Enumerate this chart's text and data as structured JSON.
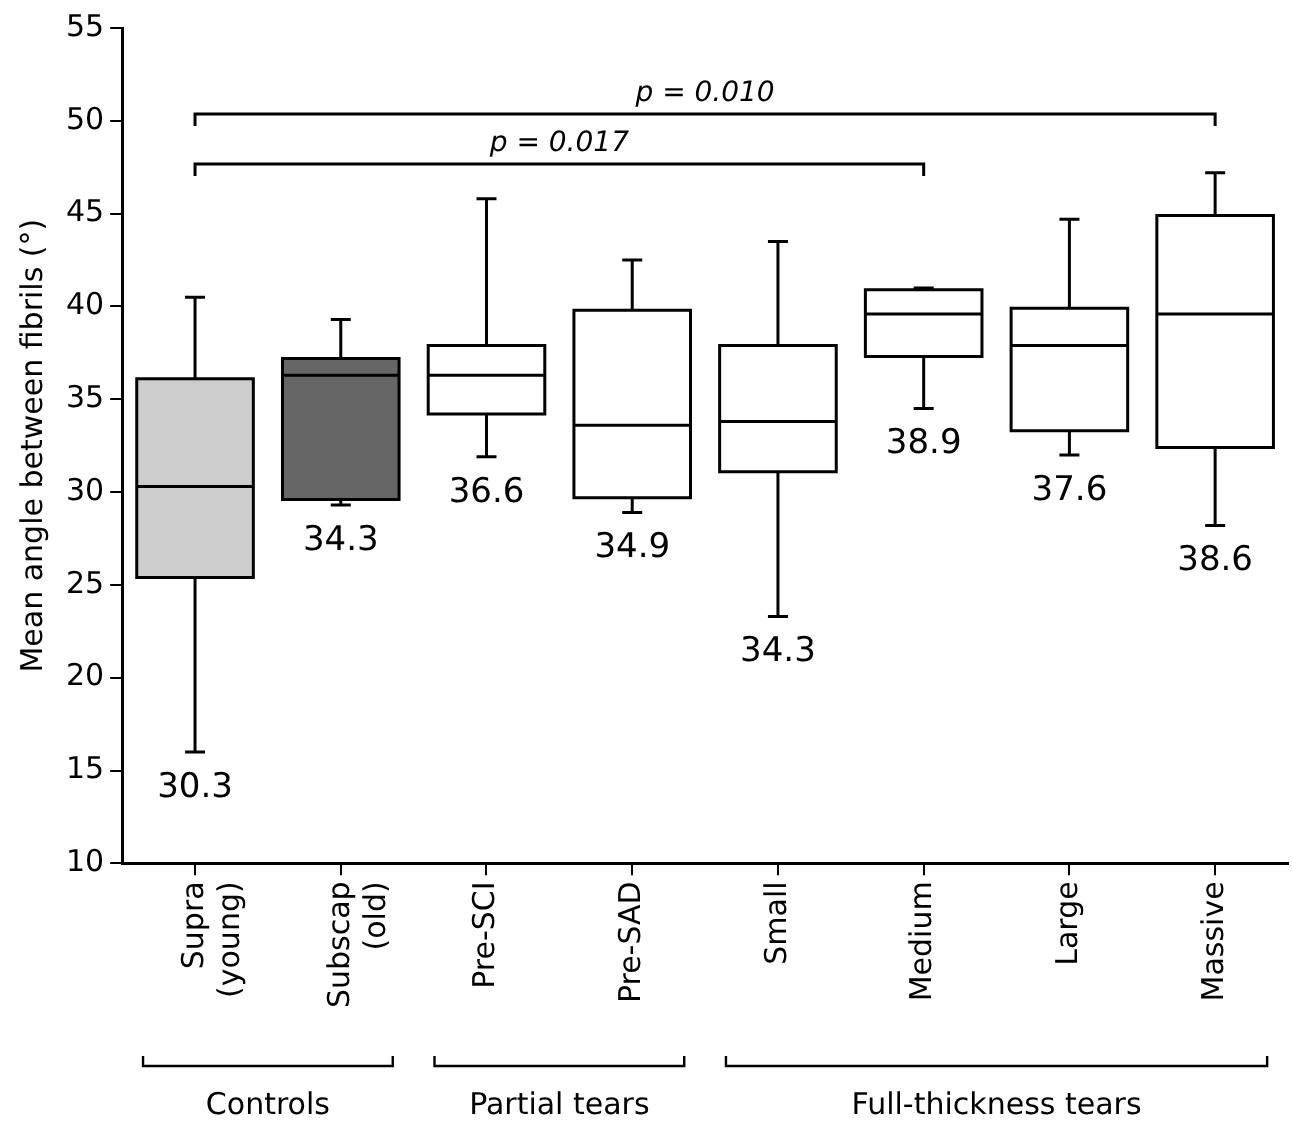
{
  "chart_data": {
    "type": "box",
    "ylabel": "Mean angle between fibrils (°)",
    "categories": [
      "Supra\n(young)",
      "Subscap\n(old)",
      "Pre-SCI",
      "Pre-SAD",
      "Small",
      "Medium",
      "Large",
      "Massive"
    ],
    "colors": [
      "#cccccc",
      "#666666",
      "#ffffff",
      "#ffffff",
      "#ffffff",
      "#ffffff",
      "#ffffff",
      "#ffffff"
    ],
    "boxes": [
      {
        "low": 16.0,
        "q1": 25.4,
        "median": 30.3,
        "q3": 36.1,
        "high": 40.5
      },
      {
        "low": 29.3,
        "q1": 29.6,
        "median": 36.3,
        "q3": 37.2,
        "high": 39.3
      },
      {
        "low": 31.9,
        "q1": 34.2,
        "median": 36.3,
        "q3": 37.9,
        "high": 45.8
      },
      {
        "low": 28.9,
        "q1": 29.7,
        "median": 33.6,
        "q3": 39.8,
        "high": 42.5
      },
      {
        "low": 23.3,
        "q1": 31.1,
        "median": 33.8,
        "q3": 37.9,
        "high": 43.5
      },
      {
        "low": 34.5,
        "q1": 37.3,
        "median": 39.6,
        "q3": 40.9,
        "high": 41.0
      },
      {
        "low": 32.0,
        "q1": 33.3,
        "median": 37.9,
        "q3": 39.9,
        "high": 44.7
      },
      {
        "low": 28.2,
        "q1": 32.4,
        "median": 39.6,
        "q3": 44.9,
        "high": 47.2
      }
    ],
    "ylim": [
      10,
      55
    ],
    "yticks": [
      10,
      15,
      20,
      25,
      30,
      35,
      40,
      45,
      50,
      55
    ],
    "annotations": [
      "p = 0.010",
      "p = 0.017",
      "30.3",
      "34.3",
      "36.6",
      "34.9",
      "34.3",
      "38.9",
      "37.6",
      "38.6",
      "Controls",
      "Partial tears",
      "Full-thickness tears"
    ]
  }
}
